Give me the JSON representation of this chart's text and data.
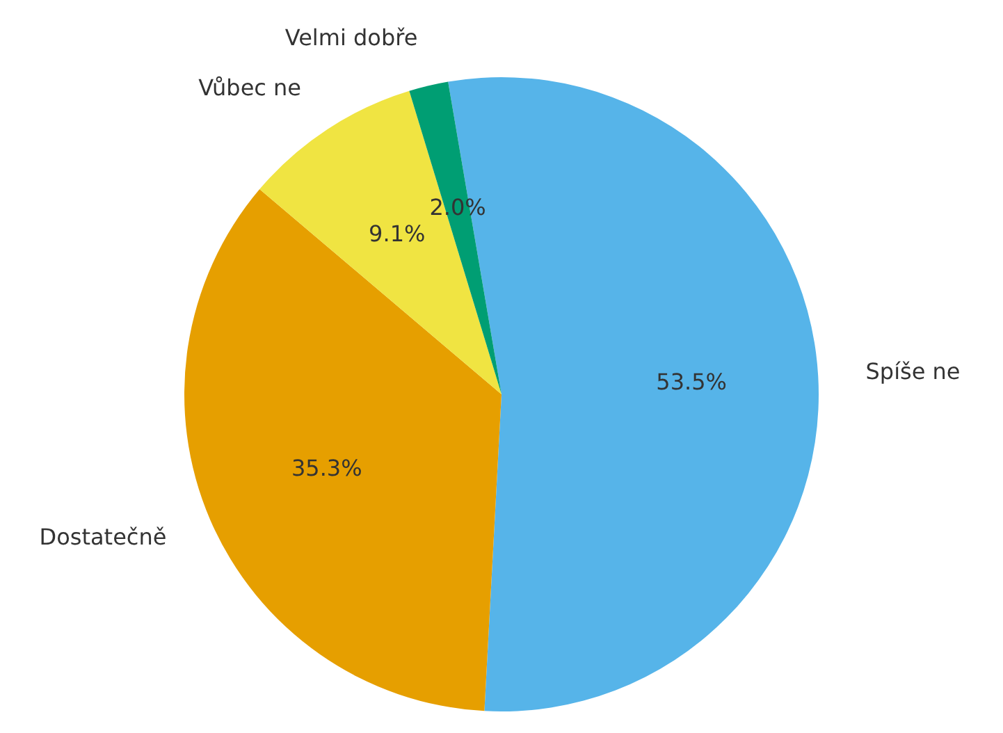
{
  "chart_data": {
    "type": "pie",
    "categories": [
      "Spíše ne",
      "Dostatečně",
      "Vůbec ne",
      "Velmi dobře"
    ],
    "values": [
      53.5,
      35.3,
      9.1,
      2.0
    ],
    "value_labels": [
      "53.5%",
      "35.3%",
      "9.1%",
      "2.0%"
    ],
    "colors": [
      "#56b4e9",
      "#e69f00",
      "#f0e442",
      "#009e73"
    ],
    "legend": false
  }
}
